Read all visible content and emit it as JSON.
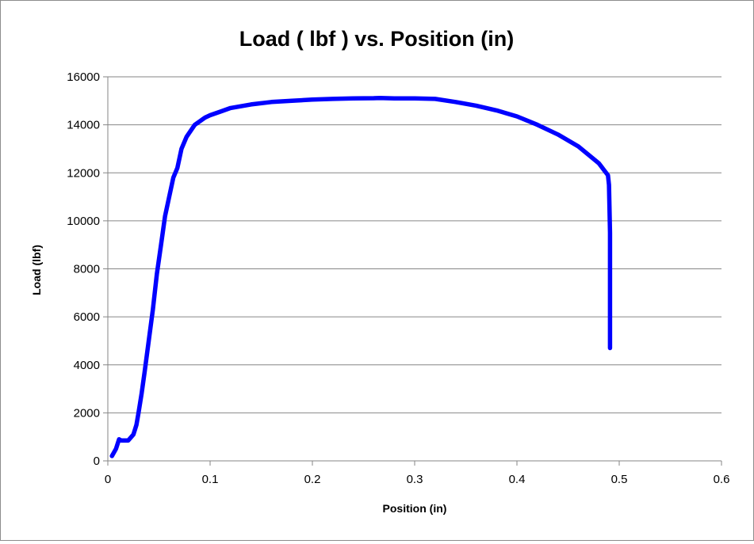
{
  "chart_data": {
    "type": "line",
    "title": "Load ( lbf ) vs. Position (in)",
    "xlabel": "Position (in)",
    "ylabel": "Load (lbf)",
    "xlim": [
      0,
      0.6
    ],
    "ylim": [
      0,
      16000
    ],
    "x_ticks": [
      "0",
      "0.1",
      "0.2",
      "0.3",
      "0.4",
      "0.5",
      "0.6"
    ],
    "y_ticks": [
      "0",
      "2000",
      "4000",
      "6000",
      "8000",
      "10000",
      "12000",
      "14000",
      "16000"
    ],
    "grid": "horizontal",
    "legend": "none",
    "series": [
      {
        "color": "#0000ff",
        "x": [
          0.004,
          0.008,
          0.011,
          0.013,
          0.016,
          0.02,
          0.023,
          0.025,
          0.028,
          0.03,
          0.033,
          0.036,
          0.04,
          0.044,
          0.048,
          0.052,
          0.056,
          0.06,
          0.064,
          0.068,
          0.072,
          0.077,
          0.085,
          0.09,
          0.095,
          0.1,
          0.11,
          0.12,
          0.14,
          0.16,
          0.18,
          0.2,
          0.22,
          0.24,
          0.26,
          0.266,
          0.28,
          0.3,
          0.32,
          0.34,
          0.36,
          0.38,
          0.4,
          0.42,
          0.44,
          0.46,
          0.48,
          0.489,
          0.49,
          0.491,
          0.491,
          0.491
        ],
        "y": [
          200,
          500,
          900,
          850,
          850,
          850,
          1000,
          1100,
          1500,
          2000,
          2800,
          3700,
          5000,
          6300,
          7800,
          9000,
          10200,
          11000,
          11800,
          12200,
          13000,
          13500,
          14000,
          14150,
          14300,
          14400,
          14550,
          14700,
          14850,
          14950,
          15000,
          15050,
          15080,
          15100,
          15110,
          15120,
          15100,
          15100,
          15080,
          14950,
          14800,
          14600,
          14350,
          14000,
          13600,
          13100,
          12400,
          11900,
          11500,
          9500,
          7000,
          4700
        ]
      }
    ]
  }
}
